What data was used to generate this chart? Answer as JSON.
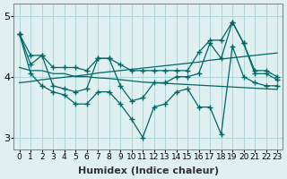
{
  "title": "",
  "xlabel": "Humidex (Indice chaleur)",
  "ylabel": "",
  "x": [
    0,
    1,
    2,
    3,
    4,
    5,
    6,
    7,
    8,
    9,
    10,
    11,
    12,
    13,
    14,
    15,
    16,
    17,
    18,
    19,
    20,
    21,
    22,
    23
  ],
  "y_main": [
    4.7,
    4.2,
    4.35,
    3.85,
    3.8,
    3.75,
    3.8,
    4.3,
    4.3,
    3.85,
    3.6,
    3.65,
    3.9,
    3.9,
    4.0,
    4.0,
    4.05,
    4.55,
    4.3,
    4.9,
    4.55,
    4.05,
    4.05,
    3.95
  ],
  "y_upper": [
    4.7,
    4.35,
    4.35,
    4.15,
    4.15,
    4.15,
    4.1,
    4.3,
    4.3,
    4.2,
    4.1,
    4.1,
    4.1,
    4.1,
    4.1,
    4.1,
    4.4,
    4.6,
    4.6,
    4.9,
    4.55,
    4.1,
    4.1,
    4.0
  ],
  "y_lower": [
    4.7,
    4.05,
    3.85,
    3.75,
    3.7,
    3.55,
    3.55,
    3.75,
    3.75,
    3.55,
    3.3,
    3.0,
    3.5,
    3.55,
    3.75,
    3.8,
    3.5,
    3.5,
    3.05,
    4.5,
    4.0,
    3.9,
    3.85,
    3.85
  ],
  "y_trend1": [
    4.15,
    4.1,
    4.1,
    4.05,
    4.05,
    4.0,
    4.0,
    3.98,
    3.97,
    3.95,
    3.93,
    3.91,
    3.9,
    3.89,
    3.88,
    3.87,
    3.86,
    3.85,
    3.84,
    3.83,
    3.82,
    3.81,
    3.8,
    3.79
  ],
  "y_trend2": [
    3.9,
    3.92,
    3.95,
    3.97,
    3.99,
    4.01,
    4.03,
    4.06,
    4.08,
    4.1,
    4.12,
    4.14,
    4.16,
    4.18,
    4.2,
    4.22,
    4.24,
    4.27,
    4.29,
    4.31,
    4.33,
    4.35,
    4.37,
    4.39
  ],
  "line_color": "#006666",
  "bg_color": "#e0f0f0",
  "grid_color": "#b0d8d8",
  "ylim": [
    2.8,
    5.2
  ],
  "yticks": [
    3,
    4,
    5
  ],
  "xlim": [
    -0.5,
    23.5
  ]
}
